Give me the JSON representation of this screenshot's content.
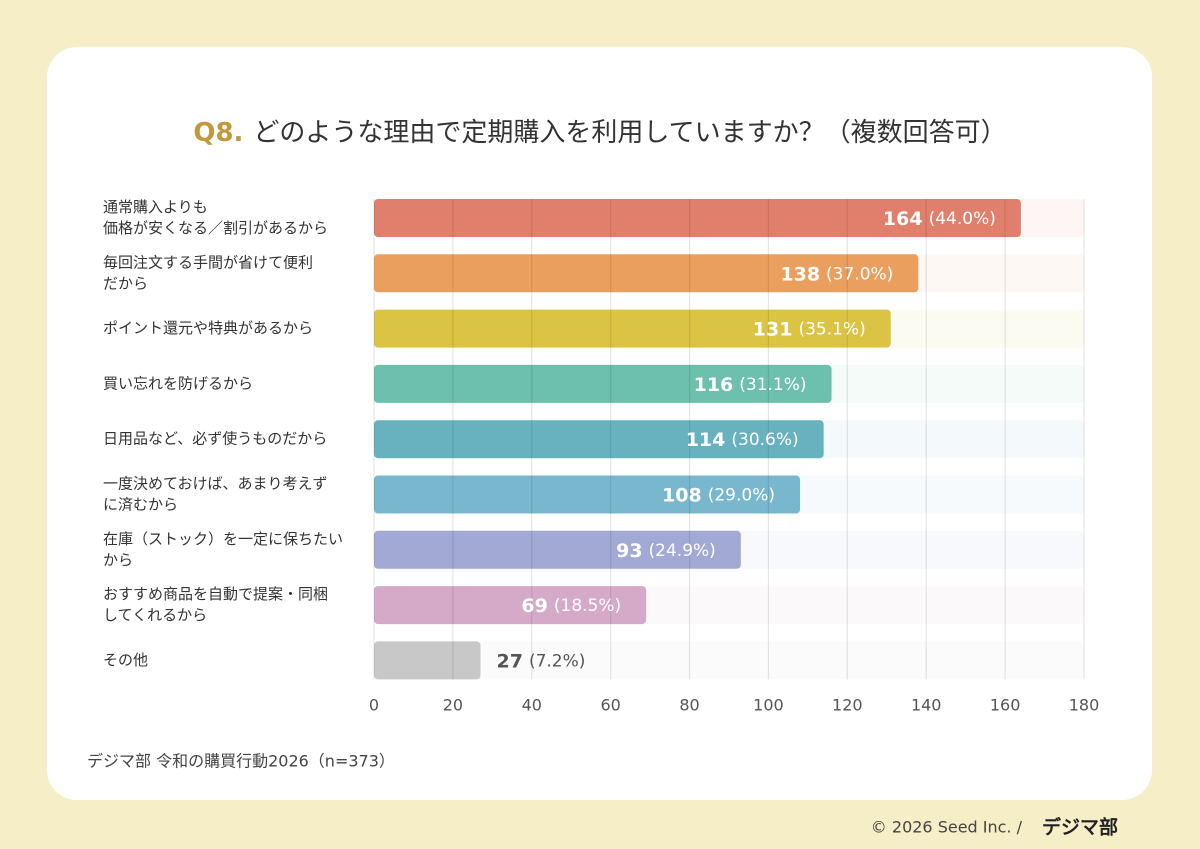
{
  "chart_data": {
    "type": "bar",
    "orientation": "horizontal",
    "title_prefix": "Q8.",
    "title": "どのような理由で定期購入を利用していますか？（複数回答可）",
    "categories": [
      [
        "通常購入よりも",
        "価格が安くなる／割引があるから"
      ],
      [
        "毎回注文する手間が省けて便利",
        "だから"
      ],
      [
        "ポイント還元や特典があるから"
      ],
      [
        "買い忘れを防げるから"
      ],
      [
        "日用品など、必ず使うものだから"
      ],
      [
        "一度決めておけば、あまり考えず",
        "に済むから"
      ],
      [
        "在庫（ストック）を一定に保ちたい",
        "から"
      ],
      [
        "おすすめ商品を自動で提案・同梱",
        "してくれるから"
      ],
      [
        "その他"
      ]
    ],
    "values": [
      164,
      138,
      131,
      116,
      114,
      108,
      93,
      69,
      27
    ],
    "percent_labels": [
      "(44.0%)",
      "(37.0%)",
      "(35.1%)",
      "(31.1%)",
      "(30.6%)",
      "(29.0%)",
      "(24.9%)",
      "(18.5%)",
      "(7.2%)"
    ],
    "colors": [
      "#e07f6b",
      "#eb9f5e",
      "#dbc444",
      "#6cc0ac",
      "#68b2c0",
      "#79b7cf",
      "#a2a9d4",
      "#d5aac9",
      "#c8c8c8"
    ],
    "xlim": [
      0,
      180
    ],
    "xticks": [
      0,
      20,
      40,
      60,
      80,
      100,
      120,
      140,
      160,
      180
    ],
    "grid": true,
    "source": "デジマ部 令和の購買行動2026（n=373）",
    "copyright": "© 2026 Seed Inc. /",
    "logo": "デジマ部"
  }
}
